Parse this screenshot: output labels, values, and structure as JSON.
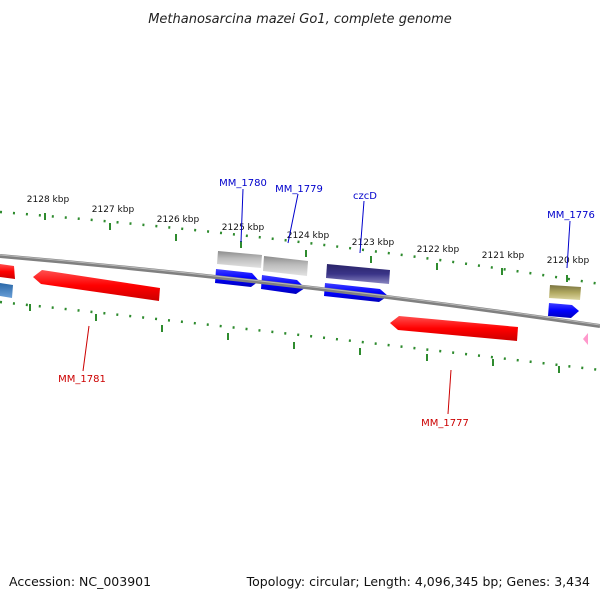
{
  "title": "Methanosarcina mazei Go1, complete genome",
  "footer": {
    "accession": "Accession: NC_003901",
    "summary": "Topology: circular; Length: 4,096,345 bp; Genes: 3,434"
  },
  "ruler": {
    "tick_labels": [
      "2128 kbp",
      "2127 kbp",
      "2126 kbp",
      "2125 kbp",
      "2124 kbp",
      "2123 kbp",
      "2122 kbp",
      "2121 kbp",
      "2120 kbp"
    ]
  },
  "gene_labels": {
    "top": [
      "MM_1780",
      "MM_1779",
      "czcD",
      "MM_1776"
    ],
    "bottom": [
      "MM_1781",
      "MM_1777"
    ]
  },
  "colors": {
    "backbone": "#808080",
    "tick_green": "#2e8b2e",
    "forward_label": "#0000cc",
    "reverse_label": "#cc0000",
    "cds_blue": "#0000ff",
    "cds_red": "#ff0000",
    "gene_gray": "#b4b4b4",
    "gene_navy": "#3a3488",
    "gene_olive": "#b0a860",
    "gene_steel": "#3a78b8",
    "gene_pink": "#ff99cc"
  }
}
